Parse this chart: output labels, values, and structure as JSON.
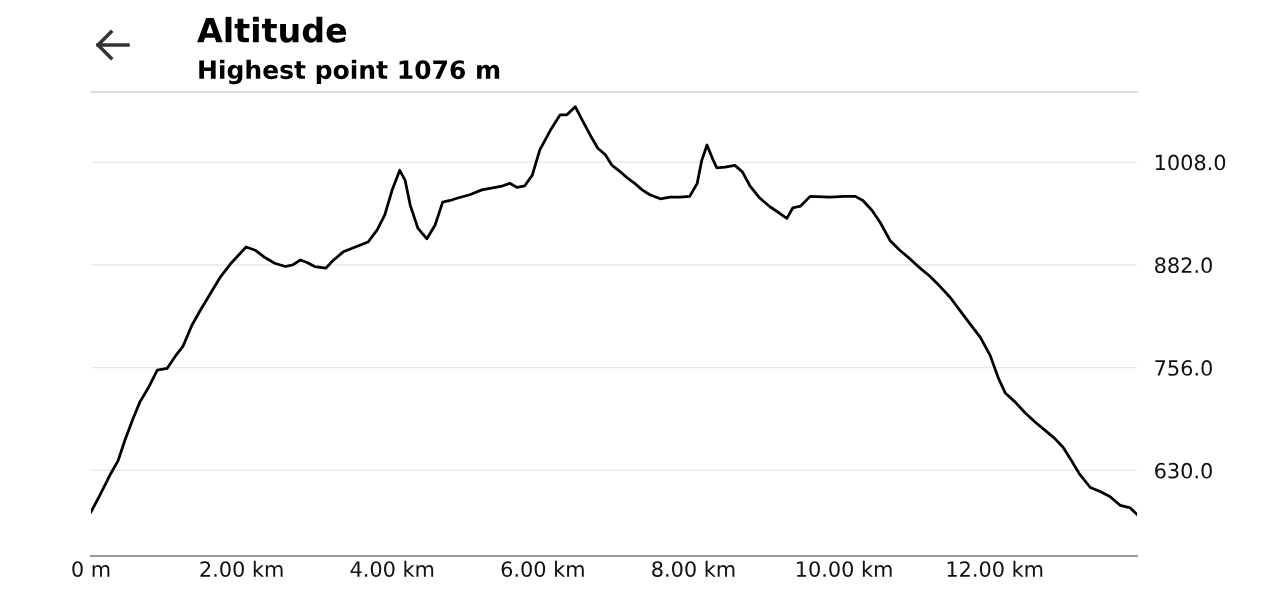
{
  "chart_data": {
    "type": "line",
    "title": "Altitude",
    "subtitle": "Highest point 1076 m",
    "x": [
      0.0,
      0.12,
      0.25,
      0.36,
      0.45,
      0.56,
      0.65,
      0.76,
      0.88,
      1.01,
      1.12,
      1.22,
      1.34,
      1.45,
      1.58,
      1.71,
      1.85,
      1.98,
      2.06,
      2.18,
      2.31,
      2.44,
      2.58,
      2.68,
      2.78,
      2.87,
      2.97,
      3.12,
      3.21,
      3.35,
      3.51,
      3.68,
      3.8,
      3.9,
      4.0,
      4.1,
      4.17,
      4.24,
      4.34,
      4.46,
      4.57,
      4.67,
      4.77,
      4.87,
      5.03,
      5.19,
      5.37,
      5.47,
      5.56,
      5.66,
      5.76,
      5.86,
      5.96,
      6.1,
      6.23,
      6.32,
      6.43,
      6.52,
      6.63,
      6.73,
      6.83,
      6.92,
      7.03,
      7.13,
      7.22,
      7.32,
      7.42,
      7.56,
      7.69,
      7.82,
      7.95,
      8.05,
      8.11,
      8.18,
      8.25,
      8.31,
      8.42,
      8.55,
      8.65,
      8.75,
      8.88,
      9.02,
      9.15,
      9.24,
      9.32,
      9.42,
      9.55,
      9.81,
      10.01,
      10.15,
      10.25,
      10.37,
      10.48,
      10.61,
      10.74,
      10.88,
      11.01,
      11.14,
      11.27,
      11.41,
      11.54,
      11.67,
      11.81,
      11.94,
      12.05,
      12.14,
      12.27,
      12.4,
      12.54,
      12.67,
      12.8,
      12.91,
      13.0,
      13.13,
      13.27,
      13.4,
      13.53,
      13.67,
      13.8,
      13.89
    ],
    "series": [
      {
        "color": "#000000",
        "values": [
          579,
          600,
          624,
          642,
          667,
          694,
          714,
          731,
          753,
          755,
          770,
          782,
          808,
          826,
          846,
          866,
          883,
          896,
          904,
          900,
          891,
          884,
          880,
          882,
          888,
          885,
          880,
          878,
          887,
          898,
          904,
          910,
          925,
          943,
          974,
          998,
          986,
          955,
          927,
          914,
          931,
          959,
          961,
          964,
          968,
          974,
          977,
          979,
          982,
          977,
          979,
          992,
          1023,
          1047,
          1066,
          1066,
          1076,
          1060,
          1041,
          1025,
          1017,
          1004,
          996,
          988,
          982,
          974,
          968,
          963,
          965,
          965,
          966,
          982,
          1010,
          1029,
          1013,
          1001,
          1002,
          1004,
          996,
          979,
          964,
          953,
          945,
          939,
          952,
          954,
          966,
          965,
          966,
          966,
          961,
          949,
          934,
          912,
          900,
          889,
          878,
          868,
          856,
          842,
          826,
          810,
          793,
          771,
          743,
          725,
          714,
          701,
          689,
          679,
          669,
          658,
          645,
          625,
          609,
          604,
          598,
          587,
          584,
          576
        ]
      }
    ],
    "xlim": [
      0,
      13.89
    ],
    "ylim": [
      525,
      1094
    ],
    "xticks": [
      {
        "value": 0,
        "label": "0 m"
      },
      {
        "value": 2,
        "label": "2.00 km"
      },
      {
        "value": 4,
        "label": "4.00 km"
      },
      {
        "value": 6,
        "label": "6.00 km"
      },
      {
        "value": 8,
        "label": "8.00 km"
      },
      {
        "value": 10,
        "label": "10.00 km"
      },
      {
        "value": 12,
        "label": "12.00 km"
      }
    ],
    "yticks": [
      {
        "value": 630,
        "label": "630.0"
      },
      {
        "value": 756,
        "label": "756.0"
      },
      {
        "value": 882,
        "label": "882.0"
      },
      {
        "value": 1008,
        "label": "1008.0"
      }
    ],
    "grid": "y",
    "legend": false,
    "marker": "none",
    "line_style": "solid"
  }
}
